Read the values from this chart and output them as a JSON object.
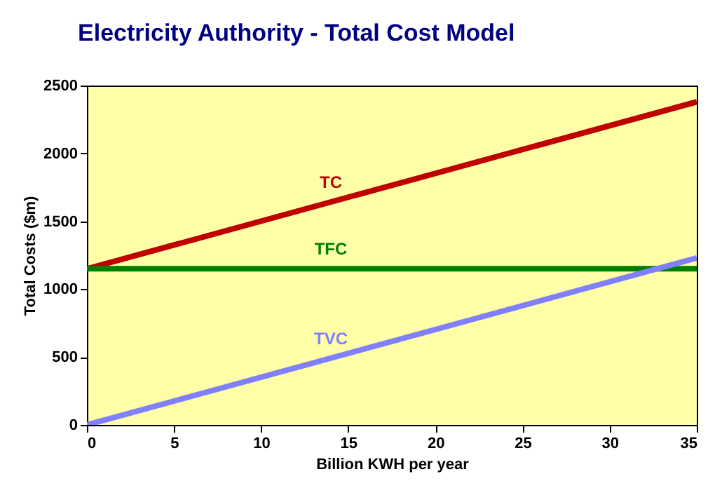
{
  "chart_data": {
    "type": "line",
    "title": "Electricity Authority - Total Cost Model",
    "xlabel": "Billion KWH per year",
    "ylabel": "Total Costs ($m)",
    "x": [
      0,
      35
    ],
    "series": [
      {
        "name": "TC",
        "color": "#c00000",
        "values": [
          1150,
          2380
        ]
      },
      {
        "name": "TFC",
        "color": "#008000",
        "values": [
          1150,
          1150
        ]
      },
      {
        "name": "TVC",
        "color": "#8080ff",
        "values": [
          0,
          1230
        ]
      }
    ],
    "xlim": [
      0,
      35
    ],
    "xticks": [
      0,
      5,
      10,
      15,
      20,
      25,
      30,
      35
    ],
    "ylim": [
      0,
      2500
    ],
    "yticks": [
      0,
      500,
      1000,
      1500,
      2000,
      2500
    ],
    "grid": false,
    "legend": false,
    "marker": "none",
    "line_style": "solid"
  }
}
